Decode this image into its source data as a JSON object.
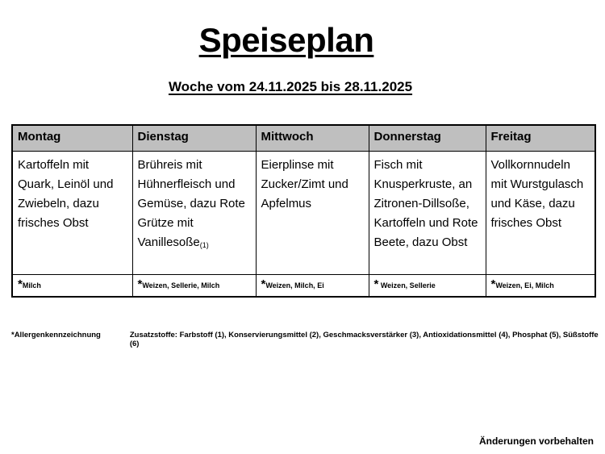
{
  "page": {
    "title": "Speiseplan",
    "subtitle": "Woche vom 24.11.2025 bis 28.11.2025"
  },
  "menu_table": {
    "allergen_marker": "*",
    "days": [
      {
        "day": "Montag",
        "meal": "Kartoffeln mit Quark, Leinöl und Zwiebeln, dazu frisches Obst",
        "meal_note": "",
        "allergens": "Milch"
      },
      {
        "day": "Dienstag",
        "meal": "Brühreis mit Hühnerfleisch und Gemüse, dazu Rote Grütze mit Vanillesoße",
        "meal_note": "(1)",
        "allergens": "Weizen, Sellerie, Milch"
      },
      {
        "day": "Mittwoch",
        "meal": "Eierplinse mit Zucker/Zimt und Apfelmus",
        "meal_note": "",
        "allergens": "Weizen, Milch, Ei"
      },
      {
        "day": "Donnerstag",
        "meal": "Fisch mit Knusperkruste, an Zitronen-Dillsoße, Kartoffeln und Rote Beete, dazu Obst",
        "meal_note": "",
        "allergens": " Weizen, Sellerie"
      },
      {
        "day": "Freitag",
        "meal": "Vollkornnudeln mit Wurstgulasch und Käse, dazu frisches Obst",
        "meal_note": "",
        "allergens": "Weizen, Ei, Milch"
      }
    ]
  },
  "footer": {
    "allergen_label": "*Allergenkennzeichnung",
    "additives": "Zusatzstoffe: Farbstoff (1), Konservierungsmittel (2), Geschmacksverstärker (3), Antioxidationsmittel (4), Phosphat (5), Süßstoffe (6)",
    "disclaimer": "Änderungen vorbehalten"
  },
  "colors": {
    "header_bg": "#bfbfbf",
    "border": "#000000",
    "page_bg": "#ffffff"
  }
}
